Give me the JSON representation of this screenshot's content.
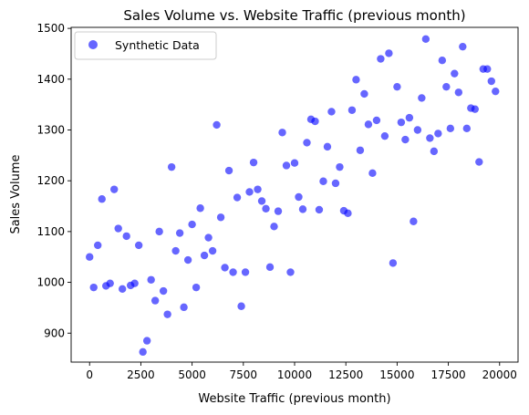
{
  "chart_data": {
    "type": "scatter",
    "title": "Sales Volume vs. Website Traffic (previous month)",
    "xlabel": "Website Traffic (previous month)",
    "ylabel": "Sales Volume",
    "xlim": [
      -900,
      20900
    ],
    "ylim": [
      843,
      1502
    ],
    "xticks": [
      0,
      2500,
      5000,
      7500,
      10000,
      12500,
      15000,
      17500,
      20000
    ],
    "xtick_labels": [
      "0",
      "2500",
      "5000",
      "7500",
      "10000",
      "12500",
      "15000",
      "17500",
      "20000"
    ],
    "yticks": [
      900,
      1000,
      1100,
      1200,
      1300,
      1400,
      1500
    ],
    "ytick_labels": [
      "900",
      "1000",
      "1100",
      "1200",
      "1300",
      "1400",
      "1500"
    ],
    "grid": false,
    "legend": {
      "position": "top-left"
    },
    "series": [
      {
        "name": "Synthetic Data",
        "color": "#0000ff",
        "alpha": 0.6,
        "marker": "circle",
        "points": [
          [
            0,
            1050
          ],
          [
            200,
            990
          ],
          [
            400,
            1073
          ],
          [
            600,
            1164
          ],
          [
            800,
            993
          ],
          [
            1000,
            998
          ],
          [
            1200,
            1183
          ],
          [
            1400,
            1106
          ],
          [
            1600,
            987
          ],
          [
            1800,
            1091
          ],
          [
            2000,
            994
          ],
          [
            2200,
            998
          ],
          [
            2400,
            1073
          ],
          [
            2600,
            863
          ],
          [
            2800,
            885
          ],
          [
            3000,
            1005
          ],
          [
            3200,
            964
          ],
          [
            3400,
            1100
          ],
          [
            3600,
            983
          ],
          [
            3800,
            937
          ],
          [
            4000,
            1227
          ],
          [
            4200,
            1062
          ],
          [
            4400,
            1097
          ],
          [
            4600,
            951
          ],
          [
            4800,
            1044
          ],
          [
            5000,
            1114
          ],
          [
            5200,
            990
          ],
          [
            5400,
            1146
          ],
          [
            5600,
            1053
          ],
          [
            5800,
            1088
          ],
          [
            6000,
            1062
          ],
          [
            6200,
            1310
          ],
          [
            6400,
            1128
          ],
          [
            6600,
            1029
          ],
          [
            6800,
            1220
          ],
          [
            7000,
            1020
          ],
          [
            7200,
            1167
          ],
          [
            7400,
            953
          ],
          [
            7600,
            1020
          ],
          [
            7800,
            1178
          ],
          [
            8000,
            1236
          ],
          [
            8200,
            1183
          ],
          [
            8400,
            1160
          ],
          [
            8600,
            1145
          ],
          [
            8800,
            1030
          ],
          [
            9000,
            1110
          ],
          [
            9200,
            1140
          ],
          [
            9400,
            1295
          ],
          [
            9600,
            1230
          ],
          [
            9800,
            1020
          ],
          [
            10000,
            1235
          ],
          [
            10200,
            1168
          ],
          [
            10400,
            1144
          ],
          [
            10600,
            1275
          ],
          [
            10800,
            1321
          ],
          [
            11000,
            1317
          ],
          [
            11200,
            1143
          ],
          [
            11400,
            1199
          ],
          [
            11600,
            1267
          ],
          [
            11800,
            1336
          ],
          [
            12000,
            1195
          ],
          [
            12200,
            1227
          ],
          [
            12400,
            1141
          ],
          [
            12600,
            1136
          ],
          [
            12800,
            1339
          ],
          [
            13000,
            1399
          ],
          [
            13200,
            1260
          ],
          [
            13400,
            1371
          ],
          [
            13600,
            1311
          ],
          [
            13800,
            1215
          ],
          [
            14000,
            1319
          ],
          [
            14200,
            1440
          ],
          [
            14400,
            1288
          ],
          [
            14600,
            1451
          ],
          [
            14800,
            1038
          ],
          [
            15000,
            1385
          ],
          [
            15200,
            1315
          ],
          [
            15400,
            1281
          ],
          [
            15600,
            1324
          ],
          [
            15800,
            1120
          ],
          [
            16000,
            1300
          ],
          [
            16200,
            1363
          ],
          [
            16400,
            1479
          ],
          [
            16600,
            1284
          ],
          [
            16800,
            1258
          ],
          [
            17000,
            1293
          ],
          [
            17200,
            1437
          ],
          [
            17400,
            1385
          ],
          [
            17600,
            1303
          ],
          [
            17800,
            1411
          ],
          [
            18000,
            1374
          ],
          [
            18200,
            1464
          ],
          [
            18400,
            1303
          ],
          [
            18600,
            1343
          ],
          [
            18800,
            1341
          ],
          [
            19000,
            1237
          ],
          [
            19200,
            1420
          ],
          [
            19400,
            1420
          ],
          [
            19600,
            1396
          ],
          [
            19800,
            1376
          ]
        ]
      }
    ]
  }
}
